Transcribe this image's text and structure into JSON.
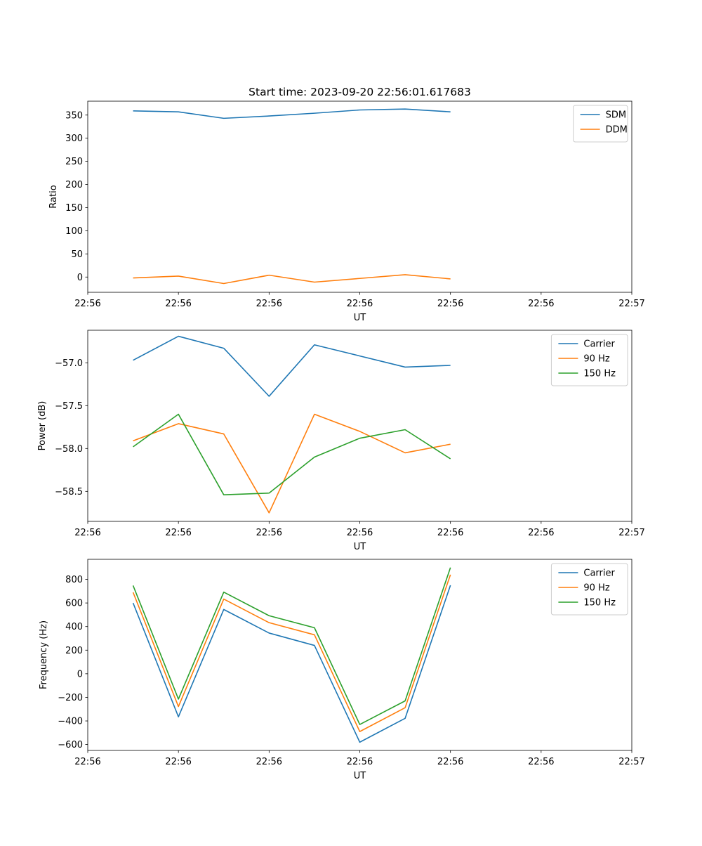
{
  "chart_data": [
    {
      "type": "line",
      "title": "Start time: 2023-09-20 22:56:01.617683",
      "xlabel": "UT",
      "ylabel": "Ratio",
      "xlim": [
        0,
        6
      ],
      "ylim": [
        -33,
        380
      ],
      "x": [
        0.5,
        1.0,
        1.5,
        2.0,
        2.5,
        3.0,
        3.5,
        4.0
      ],
      "xticks": [
        0,
        1,
        2,
        3,
        4,
        5,
        6
      ],
      "xtick_labels": [
        "22:56",
        "22:56",
        "22:56",
        "22:56",
        "22:56",
        "22:56",
        "22:57"
      ],
      "yticks": [
        0,
        50,
        100,
        150,
        200,
        250,
        300,
        350
      ],
      "ytick_labels": [
        "0",
        "50",
        "100",
        "150",
        "200",
        "250",
        "300",
        "350"
      ],
      "legend_position": "top-right",
      "series": [
        {
          "name": "SDM",
          "color": "#1f77b4",
          "values": [
            359,
            357,
            343,
            348,
            354,
            361,
            363,
            357
          ]
        },
        {
          "name": "DDM",
          "color": "#ff7f0e",
          "values": [
            -2,
            2,
            -14,
            4,
            -11,
            -3,
            5,
            -4
          ]
        }
      ]
    },
    {
      "type": "line",
      "title": "",
      "xlabel": "UT",
      "ylabel": "Power (dB)",
      "xlim": [
        0,
        6
      ],
      "ylim": [
        -58.85,
        -56.62
      ],
      "x": [
        0.5,
        1.0,
        1.5,
        2.0,
        2.5,
        3.0,
        3.5,
        4.0
      ],
      "xticks": [
        0,
        1,
        2,
        3,
        4,
        5,
        6
      ],
      "xtick_labels": [
        "22:56",
        "22:56",
        "22:56",
        "22:56",
        "22:56",
        "22:56",
        "22:57"
      ],
      "yticks": [
        -57.0,
        -57.5,
        -58.0,
        -58.5
      ],
      "ytick_labels": [
        "−57.0",
        "−57.5",
        "−58.0",
        "−58.5"
      ],
      "legend_position": "top-right",
      "series": [
        {
          "name": "Carrier",
          "color": "#1f77b4",
          "values": [
            -56.97,
            -56.69,
            -56.83,
            -57.39,
            -56.79,
            -56.92,
            -57.05,
            -57.03
          ]
        },
        {
          "name": "90 Hz",
          "color": "#ff7f0e",
          "values": [
            -57.91,
            -57.71,
            -57.83,
            -58.75,
            -57.6,
            -57.8,
            -58.05,
            -57.95
          ]
        },
        {
          "name": "150 Hz",
          "color": "#2ca02c",
          "values": [
            -57.98,
            -57.6,
            -58.54,
            -58.52,
            -58.1,
            -57.88,
            -57.78,
            -58.12
          ]
        }
      ]
    },
    {
      "type": "line",
      "title": "",
      "xlabel": "UT",
      "ylabel": "Frequency (Hz)",
      "xlim": [
        0,
        6
      ],
      "ylim": [
        -650,
        970
      ],
      "x": [
        0.5,
        1.0,
        1.5,
        2.0,
        2.5,
        3.0,
        3.5,
        4.0
      ],
      "xticks": [
        0,
        1,
        2,
        3,
        4,
        5,
        6
      ],
      "xtick_labels": [
        "22:56",
        "22:56",
        "22:56",
        "22:56",
        "22:56",
        "22:56",
        "22:57"
      ],
      "yticks": [
        -600,
        -400,
        -200,
        0,
        200,
        400,
        600,
        800
      ],
      "ytick_labels": [
        "−600",
        "−400",
        "−200",
        "0",
        "200",
        "400",
        "600",
        "800"
      ],
      "legend_position": "top-right",
      "series": [
        {
          "name": "Carrier",
          "color": "#1f77b4",
          "values": [
            600,
            -365,
            545,
            345,
            240,
            -580,
            -378,
            750
          ]
        },
        {
          "name": "90 Hz",
          "color": "#ff7f0e",
          "values": [
            690,
            -278,
            633,
            433,
            330,
            -490,
            -288,
            840
          ]
        },
        {
          "name": "150 Hz",
          "color": "#2ca02c",
          "values": [
            748,
            -215,
            692,
            492,
            390,
            -430,
            -230,
            900
          ]
        }
      ]
    }
  ]
}
